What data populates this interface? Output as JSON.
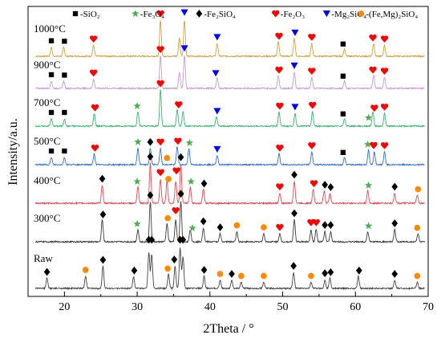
{
  "chart_data": {
    "type": "line",
    "xlabel": "2Theta / °",
    "ylabel": "Intensity/a.u.",
    "xlim": [
      15,
      70
    ],
    "x_ticks": [
      20,
      30,
      40,
      50,
      60,
      70
    ],
    "grid": false,
    "legend": {
      "placement": "top",
      "entries": [
        {
          "marker": "square",
          "color": "#000000",
          "label": "-SiO₂"
        },
        {
          "marker": "star",
          "color": "#4caf50",
          "label": "-Fe₃O₄"
        },
        {
          "marker": "diamond",
          "color": "#000000",
          "label": "-Fe₂SiO₄"
        },
        {
          "marker": "heart",
          "color": "#ff0000",
          "label": "-Fe₂O₃"
        },
        {
          "marker": "triangle-down",
          "color": "#0000ff",
          "label": "-Mg₂SiO₄"
        },
        {
          "marker": "circle",
          "color": "#ff8c00",
          "label": "-(Fe,Mg)₂SiO₄"
        }
      ]
    },
    "series": [
      {
        "name": "1000°C",
        "color": "#d4a23c",
        "peaks": [
          [
            18.2,
            0.25
          ],
          [
            19.9,
            0.25
          ],
          [
            24.0,
            0.3
          ],
          [
            33.2,
            1.0
          ],
          [
            35.8,
            0.5
          ],
          [
            36.5,
            1.0
          ],
          [
            41.0,
            0.35
          ],
          [
            49.4,
            0.4
          ],
          [
            51.6,
            0.5
          ],
          [
            54.0,
            0.35
          ],
          [
            58.5,
            0.2
          ],
          [
            62.5,
            0.35
          ],
          [
            64.0,
            0.3
          ]
        ],
        "markers": [
          {
            "x": 18.2,
            "m": "square"
          },
          {
            "x": 20.0,
            "m": "square"
          },
          {
            "x": 24.0,
            "m": "heart"
          },
          {
            "x": 33.2,
            "m": "heart"
          },
          {
            "x": 36.5,
            "m": "triangle-down"
          },
          {
            "x": 41.0,
            "m": "triangle-down"
          },
          {
            "x": 49.5,
            "m": "heart"
          },
          {
            "x": 51.7,
            "m": "triangle-down"
          },
          {
            "x": 54.0,
            "m": "heart"
          },
          {
            "x": 58.3,
            "m": "square"
          },
          {
            "x": 62.4,
            "m": "heart"
          },
          {
            "x": 64.0,
            "m": "heart"
          }
        ]
      },
      {
        "name": "900°C",
        "color": "#c39bd3",
        "peaks": [
          [
            18.2,
            0.2
          ],
          [
            19.9,
            0.2
          ],
          [
            24.0,
            0.25
          ],
          [
            33.2,
            0.9
          ],
          [
            35.8,
            0.45
          ],
          [
            36.5,
            0.9
          ],
          [
            41.0,
            0.3
          ],
          [
            49.4,
            0.35
          ],
          [
            51.6,
            0.45
          ],
          [
            54.0,
            0.3
          ],
          [
            58.5,
            0.2
          ],
          [
            62.5,
            0.35
          ],
          [
            64.0,
            0.3
          ]
        ],
        "markers": [
          {
            "x": 18.2,
            "m": "square"
          },
          {
            "x": 20.0,
            "m": "square"
          },
          {
            "x": 24.0,
            "m": "heart"
          },
          {
            "x": 33.2,
            "m": "heart"
          },
          {
            "x": 36.5,
            "m": "triangle-down"
          },
          {
            "x": 40.8,
            "m": "triangle-down"
          },
          {
            "x": 49.5,
            "m": "heart"
          },
          {
            "x": 51.6,
            "m": "triangle-down"
          },
          {
            "x": 54.0,
            "m": "heart"
          },
          {
            "x": 58.3,
            "m": "square"
          },
          {
            "x": 62.4,
            "m": "heart"
          },
          {
            "x": 64.0,
            "m": "heart"
          }
        ]
      },
      {
        "name": "700°C",
        "color": "#3cb371",
        "peaks": [
          [
            18.2,
            0.2
          ],
          [
            20.0,
            0.2
          ],
          [
            24.1,
            0.35
          ],
          [
            30.1,
            0.4
          ],
          [
            33.2,
            1.0
          ],
          [
            35.5,
            0.45
          ],
          [
            36.3,
            0.4
          ],
          [
            40.9,
            0.25
          ],
          [
            49.5,
            0.4
          ],
          [
            51.7,
            0.35
          ],
          [
            54.1,
            0.4
          ],
          [
            58.5,
            0.2
          ],
          [
            62.4,
            0.4
          ],
          [
            64.0,
            0.35
          ]
        ],
        "markers": [
          {
            "x": 18.2,
            "m": "square"
          },
          {
            "x": 20.0,
            "m": "square"
          },
          {
            "x": 24.2,
            "m": "heart"
          },
          {
            "x": 30.0,
            "m": "star"
          },
          {
            "x": 33.2,
            "m": "heart"
          },
          {
            "x": 35.7,
            "m": "heart"
          },
          {
            "x": 41.0,
            "m": "triangle-down"
          },
          {
            "x": 49.6,
            "m": "heart"
          },
          {
            "x": 51.7,
            "m": "triangle-down"
          },
          {
            "x": 54.1,
            "m": "heart"
          },
          {
            "x": 58.3,
            "m": "square"
          },
          {
            "x": 61.8,
            "m": "star"
          },
          {
            "x": 62.6,
            "m": "heart"
          },
          {
            "x": 64.0,
            "m": "heart"
          }
        ]
      },
      {
        "name": "500°C",
        "color": "#2f6fd6",
        "peaks": [
          [
            18.2,
            0.2
          ],
          [
            20.0,
            0.2
          ],
          [
            24.1,
            0.3
          ],
          [
            30.1,
            0.45
          ],
          [
            31.8,
            0.45
          ],
          [
            33.2,
            0.45
          ],
          [
            35.5,
            0.5
          ],
          [
            37.1,
            0.45
          ],
          [
            41.0,
            0.25
          ],
          [
            49.5,
            0.3
          ],
          [
            54.0,
            0.35
          ],
          [
            58.5,
            0.2
          ],
          [
            61.8,
            0.4
          ],
          [
            62.6,
            0.35
          ],
          [
            64.0,
            0.35
          ]
        ],
        "markers": [
          {
            "x": 18.2,
            "m": "square"
          },
          {
            "x": 20.0,
            "m": "square"
          },
          {
            "x": 24.2,
            "m": "heart"
          },
          {
            "x": 30.1,
            "m": "star"
          },
          {
            "x": 31.8,
            "m": "diamond"
          },
          {
            "x": 33.2,
            "m": "heart"
          },
          {
            "x": 34.1,
            "m": "circle"
          },
          {
            "x": 35.6,
            "m": "heart"
          },
          {
            "x": 37.2,
            "m": "star"
          },
          {
            "x": 41.0,
            "m": "triangle-down"
          },
          {
            "x": 49.6,
            "m": "heart"
          },
          {
            "x": 54.0,
            "m": "heart"
          },
          {
            "x": 58.3,
            "m": "square"
          },
          {
            "x": 61.7,
            "m": "star"
          },
          {
            "x": 62.5,
            "m": "heart"
          },
          {
            "x": 64.0,
            "m": "heart"
          }
        ]
      },
      {
        "name": "400°C",
        "color": "#e8474f",
        "peaks": [
          [
            25.2,
            0.45
          ],
          [
            30.1,
            0.4
          ],
          [
            31.8,
            1.0
          ],
          [
            33.2,
            0.6
          ],
          [
            34.1,
            0.55
          ],
          [
            35.3,
            0.55
          ],
          [
            36.0,
            0.95
          ],
          [
            37.3,
            0.4
          ],
          [
            39.1,
            0.35
          ],
          [
            49.6,
            0.25
          ],
          [
            51.6,
            0.55
          ],
          [
            54.2,
            0.35
          ],
          [
            55.7,
            0.3
          ],
          [
            56.5,
            0.25
          ],
          [
            61.7,
            0.3
          ],
          [
            65.4,
            0.25
          ],
          [
            68.5,
            0.2
          ]
        ],
        "markers": [
          {
            "x": 25.2,
            "m": "diamond"
          },
          {
            "x": 30.0,
            "m": "star"
          },
          {
            "x": 31.8,
            "m": "diamond"
          },
          {
            "x": 33.2,
            "m": "heart"
          },
          {
            "x": 34.3,
            "m": "circle"
          },
          {
            "x": 35.4,
            "m": "heart"
          },
          {
            "x": 36.0,
            "m": "diamond"
          },
          {
            "x": 37.4,
            "m": "star"
          },
          {
            "x": 39.2,
            "m": "diamond"
          },
          {
            "x": 49.6,
            "m": "heart"
          },
          {
            "x": 51.6,
            "m": "diamond"
          },
          {
            "x": 54.3,
            "m": "heart"
          },
          {
            "x": 55.8,
            "m": "diamond"
          },
          {
            "x": 56.6,
            "m": "diamond"
          },
          {
            "x": 61.8,
            "m": "star"
          },
          {
            "x": 65.4,
            "m": "diamond"
          },
          {
            "x": 68.6,
            "m": "circle"
          }
        ]
      },
      {
        "name": "300°C",
        "color": "#3a3a3a",
        "peaks": [
          [
            25.2,
            0.55
          ],
          [
            30.1,
            0.3
          ],
          [
            31.8,
            1.0
          ],
          [
            34.1,
            0.45
          ],
          [
            35.3,
            0.55
          ],
          [
            36.0,
            1.0
          ],
          [
            37.3,
            0.3
          ],
          [
            39.1,
            0.35
          ],
          [
            41.4,
            0.2
          ],
          [
            43.7,
            0.25
          ],
          [
            47.4,
            0.2
          ],
          [
            49.6,
            0.2
          ],
          [
            51.6,
            0.55
          ],
          [
            53.9,
            0.3
          ],
          [
            54.6,
            0.3
          ],
          [
            55.8,
            0.25
          ],
          [
            56.6,
            0.25
          ],
          [
            61.7,
            0.25
          ],
          [
            65.4,
            0.3
          ],
          [
            68.6,
            0.2
          ]
        ],
        "markers": [
          {
            "x": 25.3,
            "m": "diamond"
          },
          {
            "x": 30.0,
            "m": "star"
          },
          {
            "x": 31.8,
            "m": "diamond"
          },
          {
            "x": 34.2,
            "m": "circle"
          },
          {
            "x": 35.3,
            "m": "heart"
          },
          {
            "x": 36.0,
            "m": "circle"
          },
          {
            "x": 36.0,
            "m": "diamond"
          },
          {
            "x": 37.6,
            "m": "star"
          },
          {
            "x": 39.1,
            "m": "diamond"
          },
          {
            "x": 41.4,
            "m": "diamond"
          },
          {
            "x": 43.7,
            "m": "circle"
          },
          {
            "x": 47.4,
            "m": "circle"
          },
          {
            "x": 49.6,
            "m": "heart"
          },
          {
            "x": 51.6,
            "m": "diamond"
          },
          {
            "x": 53.9,
            "m": "heart"
          },
          {
            "x": 54.6,
            "m": "heart"
          },
          {
            "x": 55.8,
            "m": "diamond"
          },
          {
            "x": 56.6,
            "m": "diamond"
          },
          {
            "x": 61.8,
            "m": "star"
          },
          {
            "x": 65.4,
            "m": "diamond"
          },
          {
            "x": 68.5,
            "m": "circle"
          }
        ]
      },
      {
        "name": "Raw",
        "color": "#444444",
        "peaks": [
          [
            17.6,
            0.25
          ],
          [
            22.9,
            0.3
          ],
          [
            25.3,
            0.55
          ],
          [
            29.5,
            0.3
          ],
          [
            31.6,
            0.9
          ],
          [
            32.0,
            0.85
          ],
          [
            34.3,
            0.35
          ],
          [
            35.2,
            0.55
          ],
          [
            35.9,
            1.0
          ],
          [
            36.3,
            0.8
          ],
          [
            39.2,
            0.3
          ],
          [
            41.4,
            0.2
          ],
          [
            43.0,
            0.2
          ],
          [
            44.3,
            0.15
          ],
          [
            47.4,
            0.15
          ],
          [
            51.5,
            0.4
          ],
          [
            53.9,
            0.15
          ],
          [
            55.8,
            0.2
          ],
          [
            56.5,
            0.25
          ],
          [
            60.4,
            0.3
          ],
          [
            65.4,
            0.2
          ],
          [
            68.5,
            0.15
          ]
        ],
        "markers": [
          {
            "x": 17.6,
            "m": "diamond"
          },
          {
            "x": 22.9,
            "m": "circle"
          },
          {
            "x": 25.3,
            "m": "diamond"
          },
          {
            "x": 29.6,
            "m": "diamond"
          },
          {
            "x": 31.6,
            "m": "diamond"
          },
          {
            "x": 32.0,
            "m": "diamond"
          },
          {
            "x": 34.2,
            "m": "circle"
          },
          {
            "x": 35.1,
            "m": "diamond"
          },
          {
            "x": 35.9,
            "m": "circle"
          },
          {
            "x": 35.9,
            "m": "diamond"
          },
          {
            "x": 36.3,
            "m": "diamond"
          },
          {
            "x": 39.2,
            "m": "diamond"
          },
          {
            "x": 41.4,
            "m": "circle"
          },
          {
            "x": 43.0,
            "m": "diamond"
          },
          {
            "x": 44.3,
            "m": "circle"
          },
          {
            "x": 47.4,
            "m": "circle"
          },
          {
            "x": 51.5,
            "m": "diamond"
          },
          {
            "x": 53.9,
            "m": "circle"
          },
          {
            "x": 55.8,
            "m": "diamond"
          },
          {
            "x": 56.6,
            "m": "diamond"
          },
          {
            "x": 60.5,
            "m": "diamond"
          },
          {
            "x": 65.4,
            "m": "diamond"
          },
          {
            "x": 68.5,
            "m": "circle"
          }
        ]
      }
    ]
  }
}
